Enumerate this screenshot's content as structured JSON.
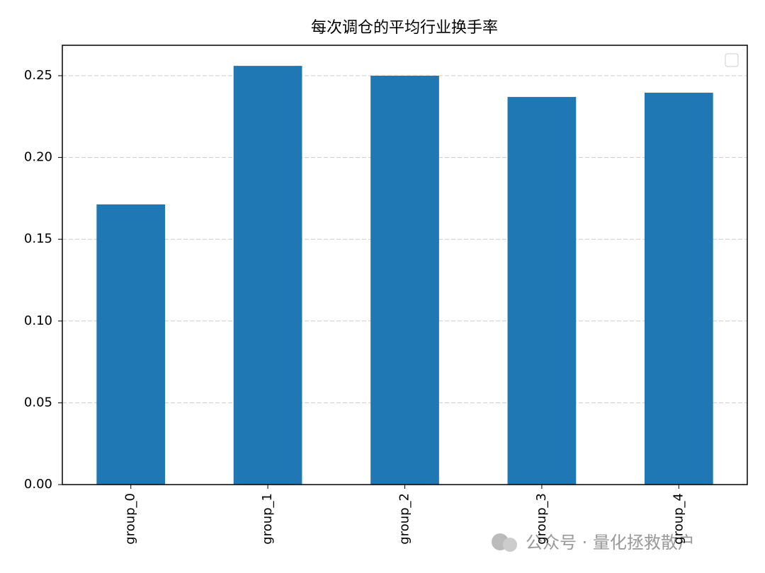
{
  "chart_data": {
    "type": "bar",
    "title": "每次调仓的平均行业换手率",
    "categories": [
      "group_0",
      "group_1",
      "group_2",
      "group_3",
      "group_4"
    ],
    "values": [
      0.1713,
      0.256,
      0.25,
      0.237,
      0.2396
    ],
    "color": "#1f77b4",
    "ylim": [
      0,
      0.2686
    ],
    "yticks": [
      {
        "value": 0,
        "label": "0.00"
      },
      {
        "value": 0.05,
        "label": "0.05"
      },
      {
        "value": 0.1,
        "label": "0.10"
      },
      {
        "value": 0.15,
        "label": "0.15"
      },
      {
        "value": 0.2,
        "label": "0.20"
      },
      {
        "value": 0.25,
        "label": "0.25"
      }
    ],
    "grid": true
  },
  "watermark": "公众号 · 量化拯救散户"
}
